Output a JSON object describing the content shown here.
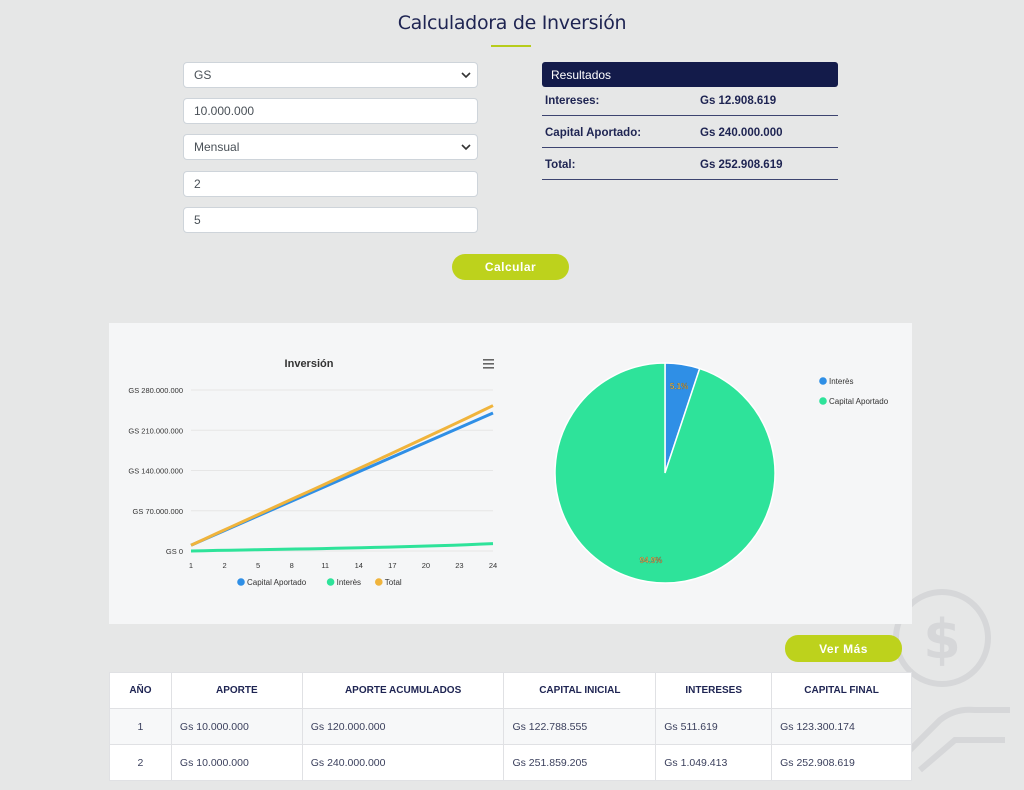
{
  "page": {
    "title": "Calculadora de Inversión"
  },
  "form": {
    "currency": "GS",
    "amount": "10.000.000",
    "frequency": "Mensual",
    "years": "2",
    "rate": "5",
    "calculate_label": "Calcular"
  },
  "results": {
    "header": "Resultados",
    "rows": [
      {
        "label": "Intereses:",
        "value": "Gs 12.908.619"
      },
      {
        "label": "Capital Aportado:",
        "value": "Gs 240.000.000"
      },
      {
        "label": "Total:",
        "value": "Gs 252.908.619"
      }
    ]
  },
  "colors": {
    "accent": "#bdd21c",
    "navy": "#131b4a",
    "capital": "#2f8fe6",
    "interes": "#2ee39a",
    "total": "#f0b43c"
  },
  "chart_data": [
    {
      "type": "line",
      "title": "Inversión",
      "x": [
        1,
        2,
        3,
        4,
        5,
        6,
        7,
        8,
        9,
        10,
        11,
        12,
        13,
        14,
        15,
        16,
        17,
        18,
        19,
        20,
        21,
        22,
        23,
        24
      ],
      "x_tick_labels": [
        "1",
        "2",
        "5",
        "8",
        "11",
        "14",
        "17",
        "20",
        "23",
        "24"
      ],
      "y_tick_labels": [
        "GS 0",
        "GS 70.000.000",
        "GS 140.000.000",
        "GS 210.000.000",
        "GS 280.000.000"
      ],
      "ylim": [
        0,
        280000000
      ],
      "series": [
        {
          "name": "Capital Aportado",
          "values": [
            10000000,
            20000000,
            30000000,
            40000000,
            50000000,
            60000000,
            70000000,
            80000000,
            90000000,
            100000000,
            110000000,
            120000000,
            130000000,
            140000000,
            150000000,
            160000000,
            170000000,
            180000000,
            190000000,
            200000000,
            210000000,
            220000000,
            230000000,
            240000000
          ]
        },
        {
          "name": "Interès",
          "values": [
            0,
            500000,
            1000000,
            1400000,
            1800000,
            2200000,
            2600000,
            3000000,
            3400000,
            3800000,
            4200000,
            4700000,
            5200000,
            5700000,
            6200000,
            6800000,
            7400000,
            8000000,
            8700000,
            9400000,
            10100000,
            10900000,
            11900000,
            12908619
          ]
        },
        {
          "name": "Total",
          "values": [
            10000000,
            20500000,
            31000000,
            41400000,
            51800000,
            62200000,
            72600000,
            83000000,
            93400000,
            103800000,
            114200000,
            124700000,
            135200000,
            145700000,
            156200000,
            166800000,
            177400000,
            188000000,
            198700000,
            209400000,
            220100000,
            230900000,
            241900000,
            252908619
          ]
        }
      ],
      "legend": "bottom",
      "grid": true
    },
    {
      "type": "pie",
      "slices": [
        {
          "name": "Interès",
          "value": 5.1,
          "label": "5.1%"
        },
        {
          "name": "Capital Aportado",
          "value": 94.9,
          "label": "94.9%"
        }
      ],
      "legend": "top-right"
    }
  ],
  "more_button": "Ver Más",
  "table": {
    "headers": [
      "AÑO",
      "APORTE",
      "APORTE ACUMULADOS",
      "CAPITAL INICIAL",
      "INTERESES",
      "CAPITAL FINAL"
    ],
    "rows": [
      [
        "1",
        "Gs 10.000.000",
        "Gs 120.000.000",
        "Gs 122.788.555",
        "Gs 511.619",
        "Gs 123.300.174"
      ],
      [
        "2",
        "Gs 10.000.000",
        "Gs 240.000.000",
        "Gs 251.859.205",
        "Gs 1.049.413",
        "Gs 252.908.619"
      ]
    ]
  }
}
